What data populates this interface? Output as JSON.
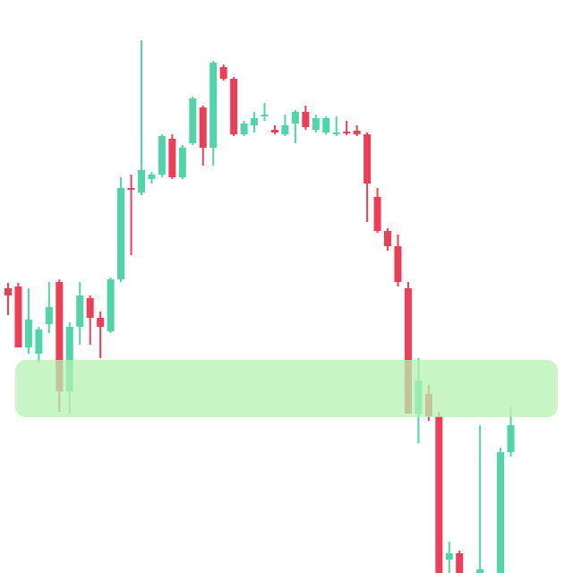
{
  "chart_data": {
    "type": "candlestick",
    "categories": [
      null,
      null,
      null,
      null,
      null,
      null,
      null,
      null,
      null,
      null,
      null,
      null,
      null,
      null,
      null,
      null,
      null,
      null,
      null,
      null,
      null,
      null,
      null,
      null,
      null,
      null,
      null,
      null,
      null,
      null,
      null,
      null,
      null,
      null,
      null,
      null,
      null,
      null,
      null,
      null,
      null,
      null,
      null,
      null,
      null,
      null,
      null,
      null,
      null,
      null
    ],
    "open": [
      318,
      320,
      252,
      245,
      278,
      325,
      203,
      275,
      307,
      285,
      270,
      328,
      430,
      425,
      440,
      445,
      485,
      442,
      480,
      520,
      475,
      565,
      552,
      490,
      500,
      510,
      495,
      490,
      502,
      515,
      495,
      492,
      490,
      493,
      494,
      490,
      420,
      382,
      365,
      318,
      178,
      200,
      175,
      15,
      22,
      null,
      0,
      null,
      0,
      135
    ],
    "high": [
      324,
      324,
      318,
      275,
      325,
      328,
      280,
      325,
      310,
      292,
      330,
      442,
      445,
      595,
      448,
      490,
      490,
      478,
      532,
      522,
      572,
      568,
      554,
      505,
      515,
      525,
      500,
      512,
      517,
      522,
      512,
      510,
      510,
      505,
      500,
      492,
      430,
      385,
      378,
      325,
      240,
      210,
      180,
      35,
      25,
      null,
      165,
      null,
      140,
      185
    ],
    "low": [
      288,
      252,
      245,
      235,
      268,
      180,
      178,
      255,
      255,
      240,
      268,
      325,
      355,
      422,
      435,
      442,
      440,
      440,
      478,
      455,
      455,
      550,
      488,
      488,
      492,
      505,
      490,
      488,
      480,
      495,
      492,
      490,
      488,
      489,
      488,
      392,
      380,
      360,
      320,
      178,
      145,
      170,
      0,
      0,
      0,
      null,
      0,
      null,
      0,
      130
    ],
    "close": [
      310,
      252,
      283,
      272,
      297,
      203,
      275,
      310,
      285,
      275,
      328,
      430,
      428,
      450,
      445,
      488,
      442,
      475,
      530,
      475,
      570,
      552,
      490,
      502,
      508,
      512,
      492,
      500,
      515,
      498,
      508,
      508,
      492,
      491,
      490,
      435,
      382,
      365,
      325,
      178,
      215,
      175,
      0,
      22,
      0,
      null,
      4,
      null,
      135,
      165
    ],
    "up_color": "#4fd6a8",
    "down_color": "#ee3d57",
    "zone": {
      "low": 174,
      "high": 238,
      "color": "#b5f2b0"
    },
    "ylim": [
      0,
      640
    ]
  }
}
